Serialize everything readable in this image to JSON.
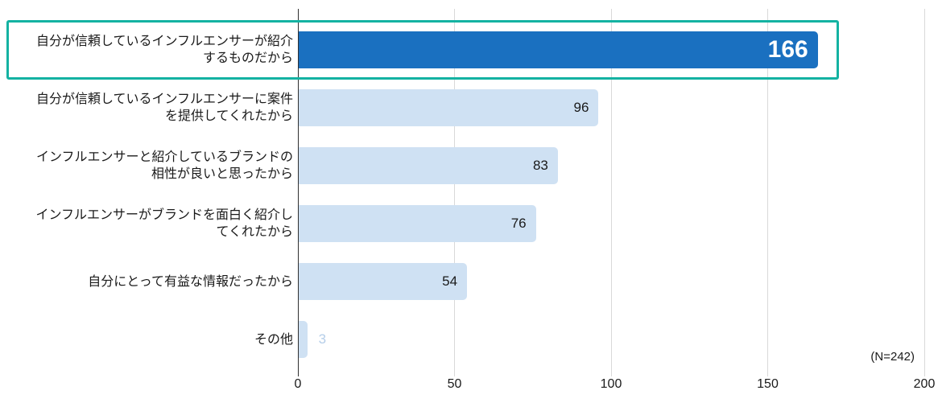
{
  "chart_data": {
    "type": "bar",
    "orientation": "horizontal",
    "title": "",
    "categories": [
      "自分が信頼しているインフルエンサーが紹介\nするものだから",
      "自分が信頼しているインフルエンサーに案件\nを提供してくれたから",
      "インフルエンサーと紹介しているブランドの\n相性が良いと思ったから",
      "インフルエンサーがブランドを面白く紹介し\nてくれたから",
      "自分にとって有益な情報だったから",
      "その他"
    ],
    "values": [
      166,
      96,
      83,
      76,
      54,
      3
    ],
    "xlim": [
      0,
      200
    ],
    "xticks": [
      0,
      50,
      100,
      150,
      200
    ],
    "grid": "vertical",
    "legend": "none",
    "annotation": "(N=242)",
    "highlighted_index": 0,
    "colors": {
      "bar_primary": "#1a70c0",
      "bar_secondary": "#cfe1f3",
      "value_on_primary": "#ffffff",
      "value_on_secondary": "#1a1a1a",
      "value_muted": "#b5cee9",
      "highlight_border": "#14b2a2",
      "gridline": "#d9d9d9",
      "axis_line": "#2f2f2f"
    }
  }
}
